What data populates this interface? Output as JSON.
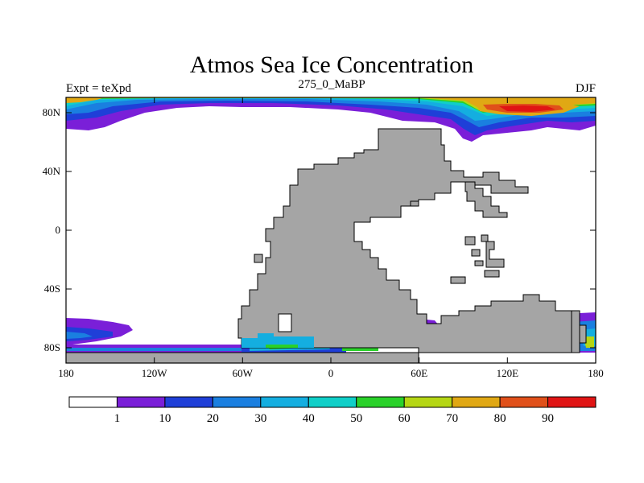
{
  "title": "Atmos Sea Ice Concentration",
  "subtitle_left": "Expt = teXpd",
  "subtitle_center": "275_0_MaBP",
  "subtitle_right": "DJF",
  "colors": {
    "land": "#a5a5a5",
    "ocean": "#ffffff",
    "border": "#000000"
  },
  "axes": {
    "x_ticks": [
      "180",
      "120W",
      "60W",
      "0",
      "60E",
      "120E",
      "180"
    ],
    "y_ticks": [
      "80N",
      "40N",
      "0",
      "40S",
      "80S"
    ]
  },
  "colorbar": {
    "labels": [
      "1",
      "10",
      "20",
      "30",
      "40",
      "50",
      "60",
      "70",
      "80",
      "90"
    ],
    "colors": [
      "#ffffff",
      "#7a1fd8",
      "#1f3fd8",
      "#1a7fe0",
      "#14aee0",
      "#10cfc8",
      "#2ad12a",
      "#b5d614",
      "#e0a814",
      "#e0501a",
      "#e01414"
    ]
  }
}
